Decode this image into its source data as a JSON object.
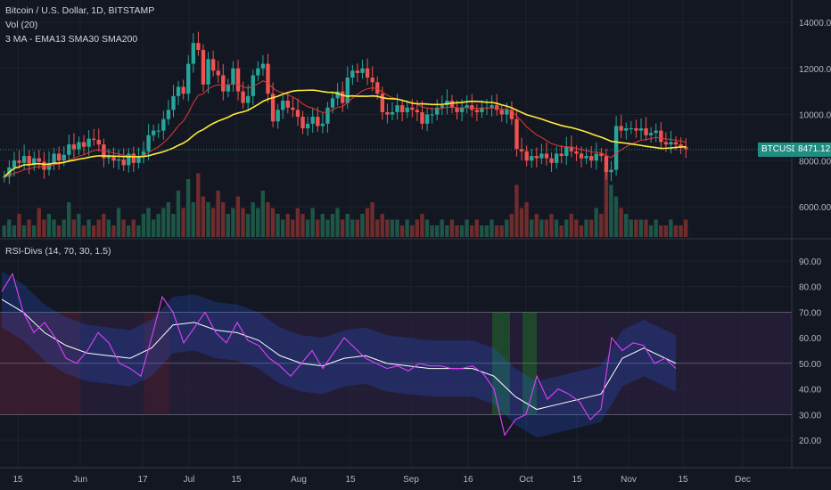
{
  "symbol_title": "Bitcoin / U.S. Dollar, 1D, BITSTAMP",
  "indicators": {
    "vol": "Vol (20)",
    "ma": "3 MA - EMA13 SMA30 SMA200",
    "rsi": "RSI-Divs (14, 70, 30, 1.5)"
  },
  "price_axis": {
    "labels": [
      "14000.00",
      "12000.00",
      "10000.00",
      "8000.00",
      "6000.00"
    ],
    "values": [
      14000,
      12000,
      10000,
      8000,
      6000
    ]
  },
  "rsi_axis": {
    "labels": [
      "90.00",
      "80.00",
      "70.00",
      "60.00",
      "50.00",
      "40.00",
      "30.00",
      "20.00"
    ],
    "values": [
      90,
      80,
      70,
      60,
      50,
      40,
      30,
      20
    ]
  },
  "price_tag": {
    "ticker": "BTCUSD",
    "value": "8471.12",
    "price": 8471.12
  },
  "time_axis": [
    "15",
    "Jun",
    "17",
    "Jul",
    "15",
    "Aug",
    "15",
    "Sep",
    "16",
    "Oct",
    "15",
    "Nov",
    "15",
    "Dec"
  ],
  "colors": {
    "up": "#26a69a",
    "down": "#ef5350",
    "ema": "#e53935",
    "sma30": "#ffeb3b",
    "rsi": "#e040fb",
    "rsi_ma": "#ffffff",
    "band": "#2962ff",
    "tag": "#1f8d80"
  },
  "chart_data": {
    "type": "candlestick",
    "xlabel": "",
    "ylabel": "",
    "ylim": [
      4500,
      14800
    ],
    "close_approx": [
      7300,
      7700,
      8000,
      7900,
      8200,
      7800,
      8100,
      7950,
      7600,
      7900,
      8300,
      8000,
      8250,
      8700,
      8500,
      8800,
      8600,
      8950,
      8900,
      8700,
      8100,
      8200,
      8000,
      8050,
      7800,
      8300,
      7900,
      8200,
      8400,
      9100,
      9300,
      9300,
      9800,
      10200,
      10800,
      11200,
      10900,
      12200,
      13100,
      12800,
      11300,
      12400,
      11900,
      11700,
      11000,
      11300,
      12000,
      11000,
      10500,
      10800,
      11700,
      12000,
      12200,
      10900,
      9700,
      10200,
      10600,
      10300,
      10200,
      9900,
      9400,
      9600,
      9900,
      9500,
      9600,
      10300,
      10700,
      11000,
      10500,
      11600,
      11900,
      11800,
      12000,
      11600,
      11400,
      10900,
      10100,
      10000,
      10100,
      10400,
      10100,
      10300,
      10200,
      10100,
      9600,
      10000,
      10000,
      10300,
      10400,
      10600,
      10300,
      10100,
      10300,
      10400,
      10200,
      10100,
      10300,
      10300,
      10400,
      10200,
      10000,
      10200,
      9800,
      8500,
      8400,
      8000,
      8200,
      8100,
      8300,
      8100,
      7900,
      8300,
      8200,
      8600,
      8400,
      8300,
      8100,
      8200,
      8000,
      8300,
      8200,
      7500,
      7600,
      9500,
      9300,
      9400,
      9400,
      9300,
      9400,
      9100,
      9200,
      9300,
      8800,
      8700,
      8800,
      8700,
      8600,
      8500
    ],
    "volume": [
      2,
      3,
      2,
      4,
      2,
      3,
      2,
      5,
      3,
      4,
      3,
      2,
      3,
      6,
      3,
      4,
      2,
      3,
      2,
      3,
      4,
      3,
      2,
      5,
      3,
      2,
      3,
      2,
      4,
      5,
      3,
      4,
      5,
      6,
      4,
      8,
      5,
      10,
      6,
      11,
      7,
      6,
      5,
      8,
      6,
      4,
      5,
      7,
      5,
      4,
      6,
      5,
      8,
      6,
      5,
      4,
      3,
      4,
      3,
      5,
      4,
      3,
      5,
      3,
      4,
      3,
      4,
      5,
      3,
      4,
      3,
      3,
      4,
      5,
      6,
      3,
      4,
      3,
      3,
      3,
      2,
      3,
      2,
      3,
      4,
      3,
      2,
      2,
      3,
      2,
      3,
      2,
      2,
      3,
      2,
      3,
      2,
      2,
      3,
      2,
      2,
      3,
      4,
      9,
      5,
      6,
      3,
      4,
      3,
      3,
      4,
      3,
      2,
      3,
      4,
      3,
      2,
      3,
      3,
      5,
      4,
      12,
      9,
      7,
      5,
      4,
      3,
      3,
      3,
      3,
      2,
      3,
      2,
      2,
      3,
      2,
      2,
      3
    ],
    "rsi_points": [
      [
        0,
        78
      ],
      [
        5,
        85
      ],
      [
        10,
        70
      ],
      [
        15,
        62
      ],
      [
        20,
        66
      ],
      [
        25,
        60
      ],
      [
        30,
        52
      ],
      [
        35,
        50
      ],
      [
        40,
        55
      ],
      [
        45,
        62
      ],
      [
        50,
        58
      ],
      [
        55,
        50
      ],
      [
        60,
        48
      ],
      [
        65,
        45
      ],
      [
        70,
        60
      ],
      [
        75,
        76
      ],
      [
        80,
        70
      ],
      [
        85,
        58
      ],
      [
        90,
        64
      ],
      [
        95,
        70
      ],
      [
        100,
        62
      ],
      [
        105,
        58
      ],
      [
        110,
        66
      ],
      [
        115,
        59
      ],
      [
        120,
        57
      ],
      [
        125,
        52
      ],
      [
        130,
        49
      ],
      [
        135,
        45
      ],
      [
        140,
        50
      ],
      [
        145,
        55
      ],
      [
        150,
        48
      ],
      [
        155,
        54
      ],
      [
        160,
        60
      ],
      [
        165,
        56
      ],
      [
        170,
        52
      ],
      [
        175,
        50
      ],
      [
        180,
        48
      ],
      [
        185,
        49
      ],
      [
        190,
        47
      ],
      [
        195,
        50
      ],
      [
        200,
        49
      ],
      [
        205,
        49
      ],
      [
        210,
        48
      ],
      [
        215,
        48
      ],
      [
        220,
        49
      ],
      [
        225,
        46
      ],
      [
        230,
        40
      ],
      [
        235,
        22
      ],
      [
        240,
        28
      ],
      [
        245,
        30
      ],
      [
        250,
        45
      ],
      [
        255,
        36
      ],
      [
        260,
        40
      ],
      [
        265,
        38
      ],
      [
        270,
        35
      ],
      [
        275,
        28
      ],
      [
        280,
        32
      ],
      [
        285,
        60
      ],
      [
        290,
        55
      ],
      [
        295,
        58
      ],
      [
        300,
        57
      ],
      [
        305,
        50
      ],
      [
        310,
        52
      ],
      [
        315,
        48
      ]
    ],
    "rsi_ma_points": [
      [
        0,
        75
      ],
      [
        10,
        70
      ],
      [
        20,
        62
      ],
      [
        30,
        57
      ],
      [
        40,
        54
      ],
      [
        50,
        53
      ],
      [
        60,
        52
      ],
      [
        70,
        56
      ],
      [
        80,
        65
      ],
      [
        90,
        66
      ],
      [
        100,
        63
      ],
      [
        110,
        62
      ],
      [
        120,
        59
      ],
      [
        130,
        53
      ],
      [
        140,
        50
      ],
      [
        150,
        49
      ],
      [
        160,
        52
      ],
      [
        170,
        53
      ],
      [
        180,
        50
      ],
      [
        190,
        49
      ],
      [
        200,
        48
      ],
      [
        210,
        48
      ],
      [
        220,
        48
      ],
      [
        230,
        45
      ],
      [
        240,
        37
      ],
      [
        250,
        32
      ],
      [
        260,
        34
      ],
      [
        270,
        36
      ],
      [
        280,
        38
      ],
      [
        290,
        52
      ],
      [
        300,
        56
      ],
      [
        310,
        52
      ],
      [
        315,
        50
      ]
    ]
  }
}
